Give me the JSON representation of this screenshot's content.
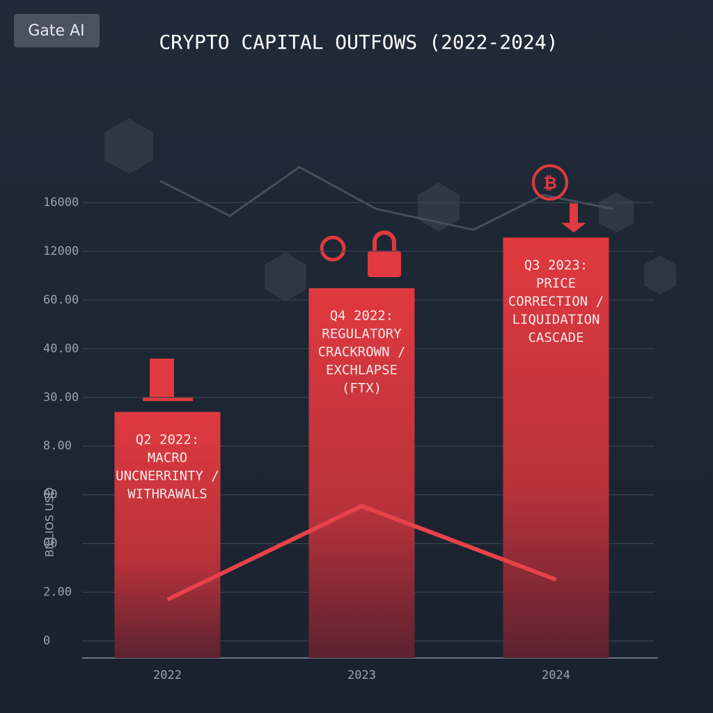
{
  "badge": "Gate AI",
  "chart_data": {
    "type": "bar",
    "title": "CRYPTO CAPITAL OUTFOWS (2022-2024)",
    "y_label": "BILLIOS USD",
    "categories": [
      "2022",
      "2023",
      "2024"
    ],
    "series": [
      {
        "type": "bar",
        "color": "#e0393f",
        "values": [
          4.7,
          7.24,
          8.28
        ]
      },
      {
        "type": "line",
        "color": "#e8424a",
        "values": [
          0.85,
          2.77,
          1.26
        ]
      }
    ],
    "annotations": [
      [
        "Q2 2022:",
        "MACRO",
        "UNCNERRINTY /",
        "WITHRAWALS"
      ],
      [
        "Q4 2022:",
        "REGULATORY",
        "CRACKROWN /",
        "EXCHLAPSE",
        "(FTX)"
      ],
      [
        "Q3 2023:",
        "PRICE",
        "CORRECTION /",
        "LIQUIDATION",
        "CASCADE"
      ]
    ],
    "ylim": [
      -0.35,
      9.5
    ],
    "yticks": [
      0,
      {
        "value": 1,
        "label": "2.00"
      },
      {
        "value": 2,
        "label": "00"
      },
      {
        "value": 3,
        "label": "00"
      },
      {
        "value": 4,
        "label": "8.00"
      },
      {
        "value": 5,
        "label": "30.00"
      },
      {
        "value": 6,
        "label": "40.00"
      },
      {
        "value": 7,
        "label": "60.00"
      },
      {
        "value": 8,
        "label": "12000"
      },
      {
        "value": 9,
        "label": "16000"
      }
    ],
    "grid": true
  }
}
